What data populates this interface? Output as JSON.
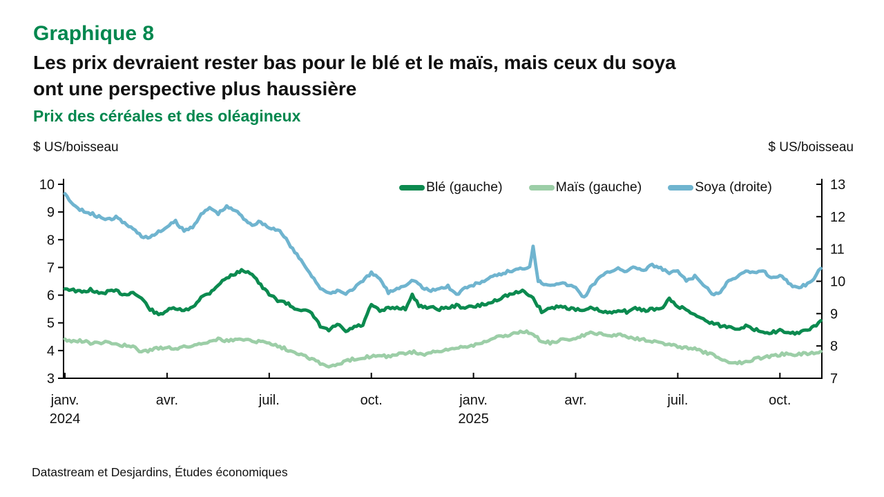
{
  "page": {
    "title": "Graphique 8",
    "headline_line1": "Les prix devraient rester bas pour le blé et le maïs, mais ceux du soya",
    "headline_line2": "ont une perspective plus haussière",
    "subtitle": "Prix des céréales et des oléagineux",
    "unit_left": "$ US/boisseau",
    "unit_right": "$ US/boisseau",
    "source": "Datastream et Desjardins, Études économiques",
    "colors": {
      "title_green": "#00874E",
      "text": "#111111",
      "axis": "#000000"
    }
  },
  "chart_data": {
    "type": "line",
    "title": "Prix des céréales et des oléagineux",
    "ylabel_left": "$ US/boisseau",
    "ylabel_right": "$ US/boisseau",
    "grid": false,
    "legend_position": "top-inside",
    "left_axis": {
      "min": 3,
      "max": 10,
      "ticks": [
        3,
        4,
        5,
        6,
        7,
        8,
        9,
        10
      ]
    },
    "right_axis": {
      "min": 7,
      "max": 13,
      "ticks": [
        7,
        8,
        9,
        10,
        11,
        12,
        13
      ]
    },
    "x_axis": {
      "unit": "months since janv. 2024",
      "min": 0,
      "max": 22.2,
      "ticks": [
        {
          "t": 0,
          "label": "janv.",
          "year": "2024"
        },
        {
          "t": 3,
          "label": "avr."
        },
        {
          "t": 6,
          "label": "juil."
        },
        {
          "t": 9,
          "label": "oct."
        },
        {
          "t": 12,
          "label": "janv.",
          "year": "2025"
        },
        {
          "t": 15,
          "label": "avr."
        },
        {
          "t": 18,
          "label": "juil."
        },
        {
          "t": 21,
          "label": "oct."
        }
      ]
    },
    "series": [
      {
        "name": "Blé (gauche)",
        "axis": "left",
        "color": "#0B8A4F",
        "points": [
          [
            0,
            6.25
          ],
          [
            0.25,
            6.18
          ],
          [
            0.5,
            6.1
          ],
          [
            0.75,
            6.2
          ],
          [
            1,
            6.05
          ],
          [
            1.25,
            6.12
          ],
          [
            1.5,
            6.15
          ],
          [
            1.75,
            6.02
          ],
          [
            2,
            6.1
          ],
          [
            2.25,
            5.88
          ],
          [
            2.5,
            5.5
          ],
          [
            2.75,
            5.28
          ],
          [
            3,
            5.45
          ],
          [
            3.25,
            5.52
          ],
          [
            3.5,
            5.42
          ],
          [
            3.75,
            5.58
          ],
          [
            4,
            5.92
          ],
          [
            4.25,
            6.08
          ],
          [
            4.5,
            6.38
          ],
          [
            4.75,
            6.62
          ],
          [
            5,
            6.78
          ],
          [
            5.25,
            6.9
          ],
          [
            5.5,
            6.78
          ],
          [
            5.75,
            6.35
          ],
          [
            6,
            6.02
          ],
          [
            6.25,
            5.82
          ],
          [
            6.5,
            5.72
          ],
          [
            6.75,
            5.52
          ],
          [
            7,
            5.48
          ],
          [
            7.25,
            5.32
          ],
          [
            7.5,
            4.88
          ],
          [
            7.75,
            4.72
          ],
          [
            8,
            4.95
          ],
          [
            8.25,
            4.68
          ],
          [
            8.5,
            4.85
          ],
          [
            8.75,
            4.92
          ],
          [
            9,
            5.65
          ],
          [
            9.25,
            5.42
          ],
          [
            9.5,
            5.52
          ],
          [
            9.75,
            5.55
          ],
          [
            10,
            5.52
          ],
          [
            10.2,
            6.0
          ],
          [
            10.4,
            5.62
          ],
          [
            10.75,
            5.55
          ],
          [
            11,
            5.5
          ],
          [
            11.25,
            5.55
          ],
          [
            11.5,
            5.62
          ],
          [
            11.75,
            5.55
          ],
          [
            12,
            5.58
          ],
          [
            12.25,
            5.65
          ],
          [
            12.5,
            5.72
          ],
          [
            12.75,
            5.88
          ],
          [
            13,
            6.0
          ],
          [
            13.25,
            6.08
          ],
          [
            13.5,
            6.15
          ],
          [
            13.75,
            5.88
          ],
          [
            14,
            5.42
          ],
          [
            14.25,
            5.52
          ],
          [
            14.5,
            5.6
          ],
          [
            14.75,
            5.55
          ],
          [
            15,
            5.48
          ],
          [
            15.25,
            5.42
          ],
          [
            15.5,
            5.55
          ],
          [
            15.75,
            5.4
          ],
          [
            16,
            5.35
          ],
          [
            16.25,
            5.48
          ],
          [
            16.5,
            5.4
          ],
          [
            16.75,
            5.52
          ],
          [
            17,
            5.45
          ],
          [
            17.25,
            5.5
          ],
          [
            17.5,
            5.48
          ],
          [
            17.75,
            5.85
          ],
          [
            18,
            5.6
          ],
          [
            18.25,
            5.48
          ],
          [
            18.5,
            5.3
          ],
          [
            18.75,
            5.12
          ],
          [
            19,
            5.0
          ],
          [
            19.25,
            4.9
          ],
          [
            19.5,
            4.85
          ],
          [
            19.75,
            4.8
          ],
          [
            20,
            4.88
          ],
          [
            20.25,
            4.75
          ],
          [
            20.5,
            4.7
          ],
          [
            20.75,
            4.65
          ],
          [
            21,
            4.72
          ],
          [
            21.25,
            4.6
          ],
          [
            21.5,
            4.65
          ],
          [
            21.75,
            4.7
          ],
          [
            22,
            4.85
          ],
          [
            22.2,
            5.08
          ]
        ]
      },
      {
        "name": "Maïs (gauche)",
        "axis": "left",
        "color": "#9CCEA7",
        "points": [
          [
            0,
            4.4
          ],
          [
            0.25,
            4.32
          ],
          [
            0.5,
            4.35
          ],
          [
            0.75,
            4.28
          ],
          [
            1,
            4.25
          ],
          [
            1.25,
            4.3
          ],
          [
            1.5,
            4.24
          ],
          [
            1.75,
            4.18
          ],
          [
            2,
            4.12
          ],
          [
            2.25,
            3.95
          ],
          [
            2.5,
            4.02
          ],
          [
            2.75,
            4.08
          ],
          [
            3,
            4.12
          ],
          [
            3.25,
            4.08
          ],
          [
            3.5,
            4.12
          ],
          [
            3.75,
            4.18
          ],
          [
            4,
            4.25
          ],
          [
            4.25,
            4.35
          ],
          [
            4.5,
            4.42
          ],
          [
            4.75,
            4.35
          ],
          [
            5,
            4.38
          ],
          [
            5.25,
            4.42
          ],
          [
            5.5,
            4.35
          ],
          [
            5.75,
            4.32
          ],
          [
            6,
            4.28
          ],
          [
            6.25,
            4.18
          ],
          [
            6.5,
            4.05
          ],
          [
            6.75,
            3.95
          ],
          [
            7,
            3.85
          ],
          [
            7.25,
            3.7
          ],
          [
            7.5,
            3.55
          ],
          [
            7.75,
            3.4
          ],
          [
            8,
            3.5
          ],
          [
            8.25,
            3.6
          ],
          [
            8.5,
            3.7
          ],
          [
            8.75,
            3.75
          ],
          [
            9,
            3.8
          ],
          [
            9.25,
            3.85
          ],
          [
            9.5,
            3.78
          ],
          [
            9.75,
            3.85
          ],
          [
            10,
            3.9
          ],
          [
            10.25,
            3.95
          ],
          [
            10.5,
            3.85
          ],
          [
            10.75,
            3.92
          ],
          [
            11,
            3.95
          ],
          [
            11.25,
            4.02
          ],
          [
            11.5,
            4.1
          ],
          [
            11.75,
            4.15
          ],
          [
            12,
            4.2
          ],
          [
            12.25,
            4.3
          ],
          [
            12.5,
            4.4
          ],
          [
            12.75,
            4.5
          ],
          [
            13,
            4.55
          ],
          [
            13.25,
            4.65
          ],
          [
            13.5,
            4.7
          ],
          [
            13.75,
            4.55
          ],
          [
            14,
            4.35
          ],
          [
            14.25,
            4.28
          ],
          [
            14.5,
            4.35
          ],
          [
            14.75,
            4.4
          ],
          [
            15,
            4.45
          ],
          [
            15.25,
            4.55
          ],
          [
            15.5,
            4.65
          ],
          [
            15.75,
            4.58
          ],
          [
            16,
            4.52
          ],
          [
            16.25,
            4.6
          ],
          [
            16.5,
            4.5
          ],
          [
            16.75,
            4.45
          ],
          [
            17,
            4.4
          ],
          [
            17.25,
            4.35
          ],
          [
            17.5,
            4.28
          ],
          [
            17.75,
            4.2
          ],
          [
            18,
            4.15
          ],
          [
            18.25,
            4.1
          ],
          [
            18.5,
            4.05
          ],
          [
            18.75,
            3.95
          ],
          [
            19,
            3.85
          ],
          [
            19.25,
            3.7
          ],
          [
            19.5,
            3.6
          ],
          [
            19.75,
            3.55
          ],
          [
            20,
            3.6
          ],
          [
            20.25,
            3.7
          ],
          [
            20.5,
            3.75
          ],
          [
            20.75,
            3.8
          ],
          [
            21,
            3.85
          ],
          [
            21.25,
            3.9
          ],
          [
            21.5,
            3.85
          ],
          [
            21.75,
            3.9
          ],
          [
            22,
            3.9
          ],
          [
            22.2,
            3.97
          ]
        ]
      },
      {
        "name": "Soya (droite)",
        "axis": "right",
        "color": "#6FB4CF",
        "points": [
          [
            0,
            12.7
          ],
          [
            0.25,
            12.35
          ],
          [
            0.5,
            12.2
          ],
          [
            0.75,
            12.1
          ],
          [
            1,
            12.0
          ],
          [
            1.25,
            11.9
          ],
          [
            1.5,
            11.98
          ],
          [
            1.75,
            11.8
          ],
          [
            2,
            11.62
          ],
          [
            2.25,
            11.4
          ],
          [
            2.5,
            11.35
          ],
          [
            2.75,
            11.52
          ],
          [
            3,
            11.68
          ],
          [
            3.25,
            11.85
          ],
          [
            3.5,
            11.55
          ],
          [
            3.75,
            11.7
          ],
          [
            4,
            12.05
          ],
          [
            4.25,
            12.28
          ],
          [
            4.5,
            12.1
          ],
          [
            4.75,
            12.3
          ],
          [
            5,
            12.2
          ],
          [
            5.25,
            11.95
          ],
          [
            5.5,
            11.75
          ],
          [
            5.75,
            11.85
          ],
          [
            6,
            11.65
          ],
          [
            6.25,
            11.6
          ],
          [
            6.5,
            11.3
          ],
          [
            6.75,
            10.9
          ],
          [
            7,
            10.55
          ],
          [
            7.25,
            10.18
          ],
          [
            7.5,
            9.8
          ],
          [
            7.75,
            9.6
          ],
          [
            8,
            9.72
          ],
          [
            8.25,
            9.62
          ],
          [
            8.5,
            9.8
          ],
          [
            8.75,
            10.0
          ],
          [
            9,
            10.25
          ],
          [
            9.25,
            10.08
          ],
          [
            9.5,
            9.65
          ],
          [
            9.75,
            9.78
          ],
          [
            10,
            9.9
          ],
          [
            10.25,
            10.05
          ],
          [
            10.5,
            9.8
          ],
          [
            10.75,
            9.7
          ],
          [
            11,
            9.78
          ],
          [
            11.25,
            9.85
          ],
          [
            11.5,
            9.58
          ],
          [
            11.75,
            9.8
          ],
          [
            12,
            9.88
          ],
          [
            12.25,
            10.0
          ],
          [
            12.5,
            10.1
          ],
          [
            12.75,
            10.2
          ],
          [
            13,
            10.3
          ],
          [
            13.25,
            10.35
          ],
          [
            13.5,
            10.42
          ],
          [
            13.65,
            10.45
          ],
          [
            13.75,
            11.1
          ],
          [
            13.9,
            10.02
          ],
          [
            14,
            9.95
          ],
          [
            14.25,
            9.9
          ],
          [
            14.5,
            9.95
          ],
          [
            14.75,
            9.9
          ],
          [
            15,
            9.8
          ],
          [
            15.25,
            9.5
          ],
          [
            15.5,
            9.9
          ],
          [
            15.75,
            10.15
          ],
          [
            16,
            10.3
          ],
          [
            16.25,
            10.42
          ],
          [
            16.5,
            10.3
          ],
          [
            16.75,
            10.45
          ],
          [
            17,
            10.32
          ],
          [
            17.25,
            10.5
          ],
          [
            17.5,
            10.4
          ],
          [
            17.75,
            10.25
          ],
          [
            18,
            10.32
          ],
          [
            18.25,
            10.0
          ],
          [
            18.5,
            10.15
          ],
          [
            18.75,
            9.9
          ],
          [
            19,
            9.6
          ],
          [
            19.25,
            9.65
          ],
          [
            19.5,
            10.05
          ],
          [
            19.75,
            10.15
          ],
          [
            20,
            10.3
          ],
          [
            20.25,
            10.25
          ],
          [
            20.5,
            10.35
          ],
          [
            20.75,
            10.1
          ],
          [
            21,
            10.2
          ],
          [
            21.25,
            9.95
          ],
          [
            21.5,
            9.8
          ],
          [
            21.75,
            9.9
          ],
          [
            22,
            10.1
          ],
          [
            22.2,
            10.4
          ]
        ]
      }
    ],
    "source": "Datastream et Desjardins, Études économiques"
  }
}
